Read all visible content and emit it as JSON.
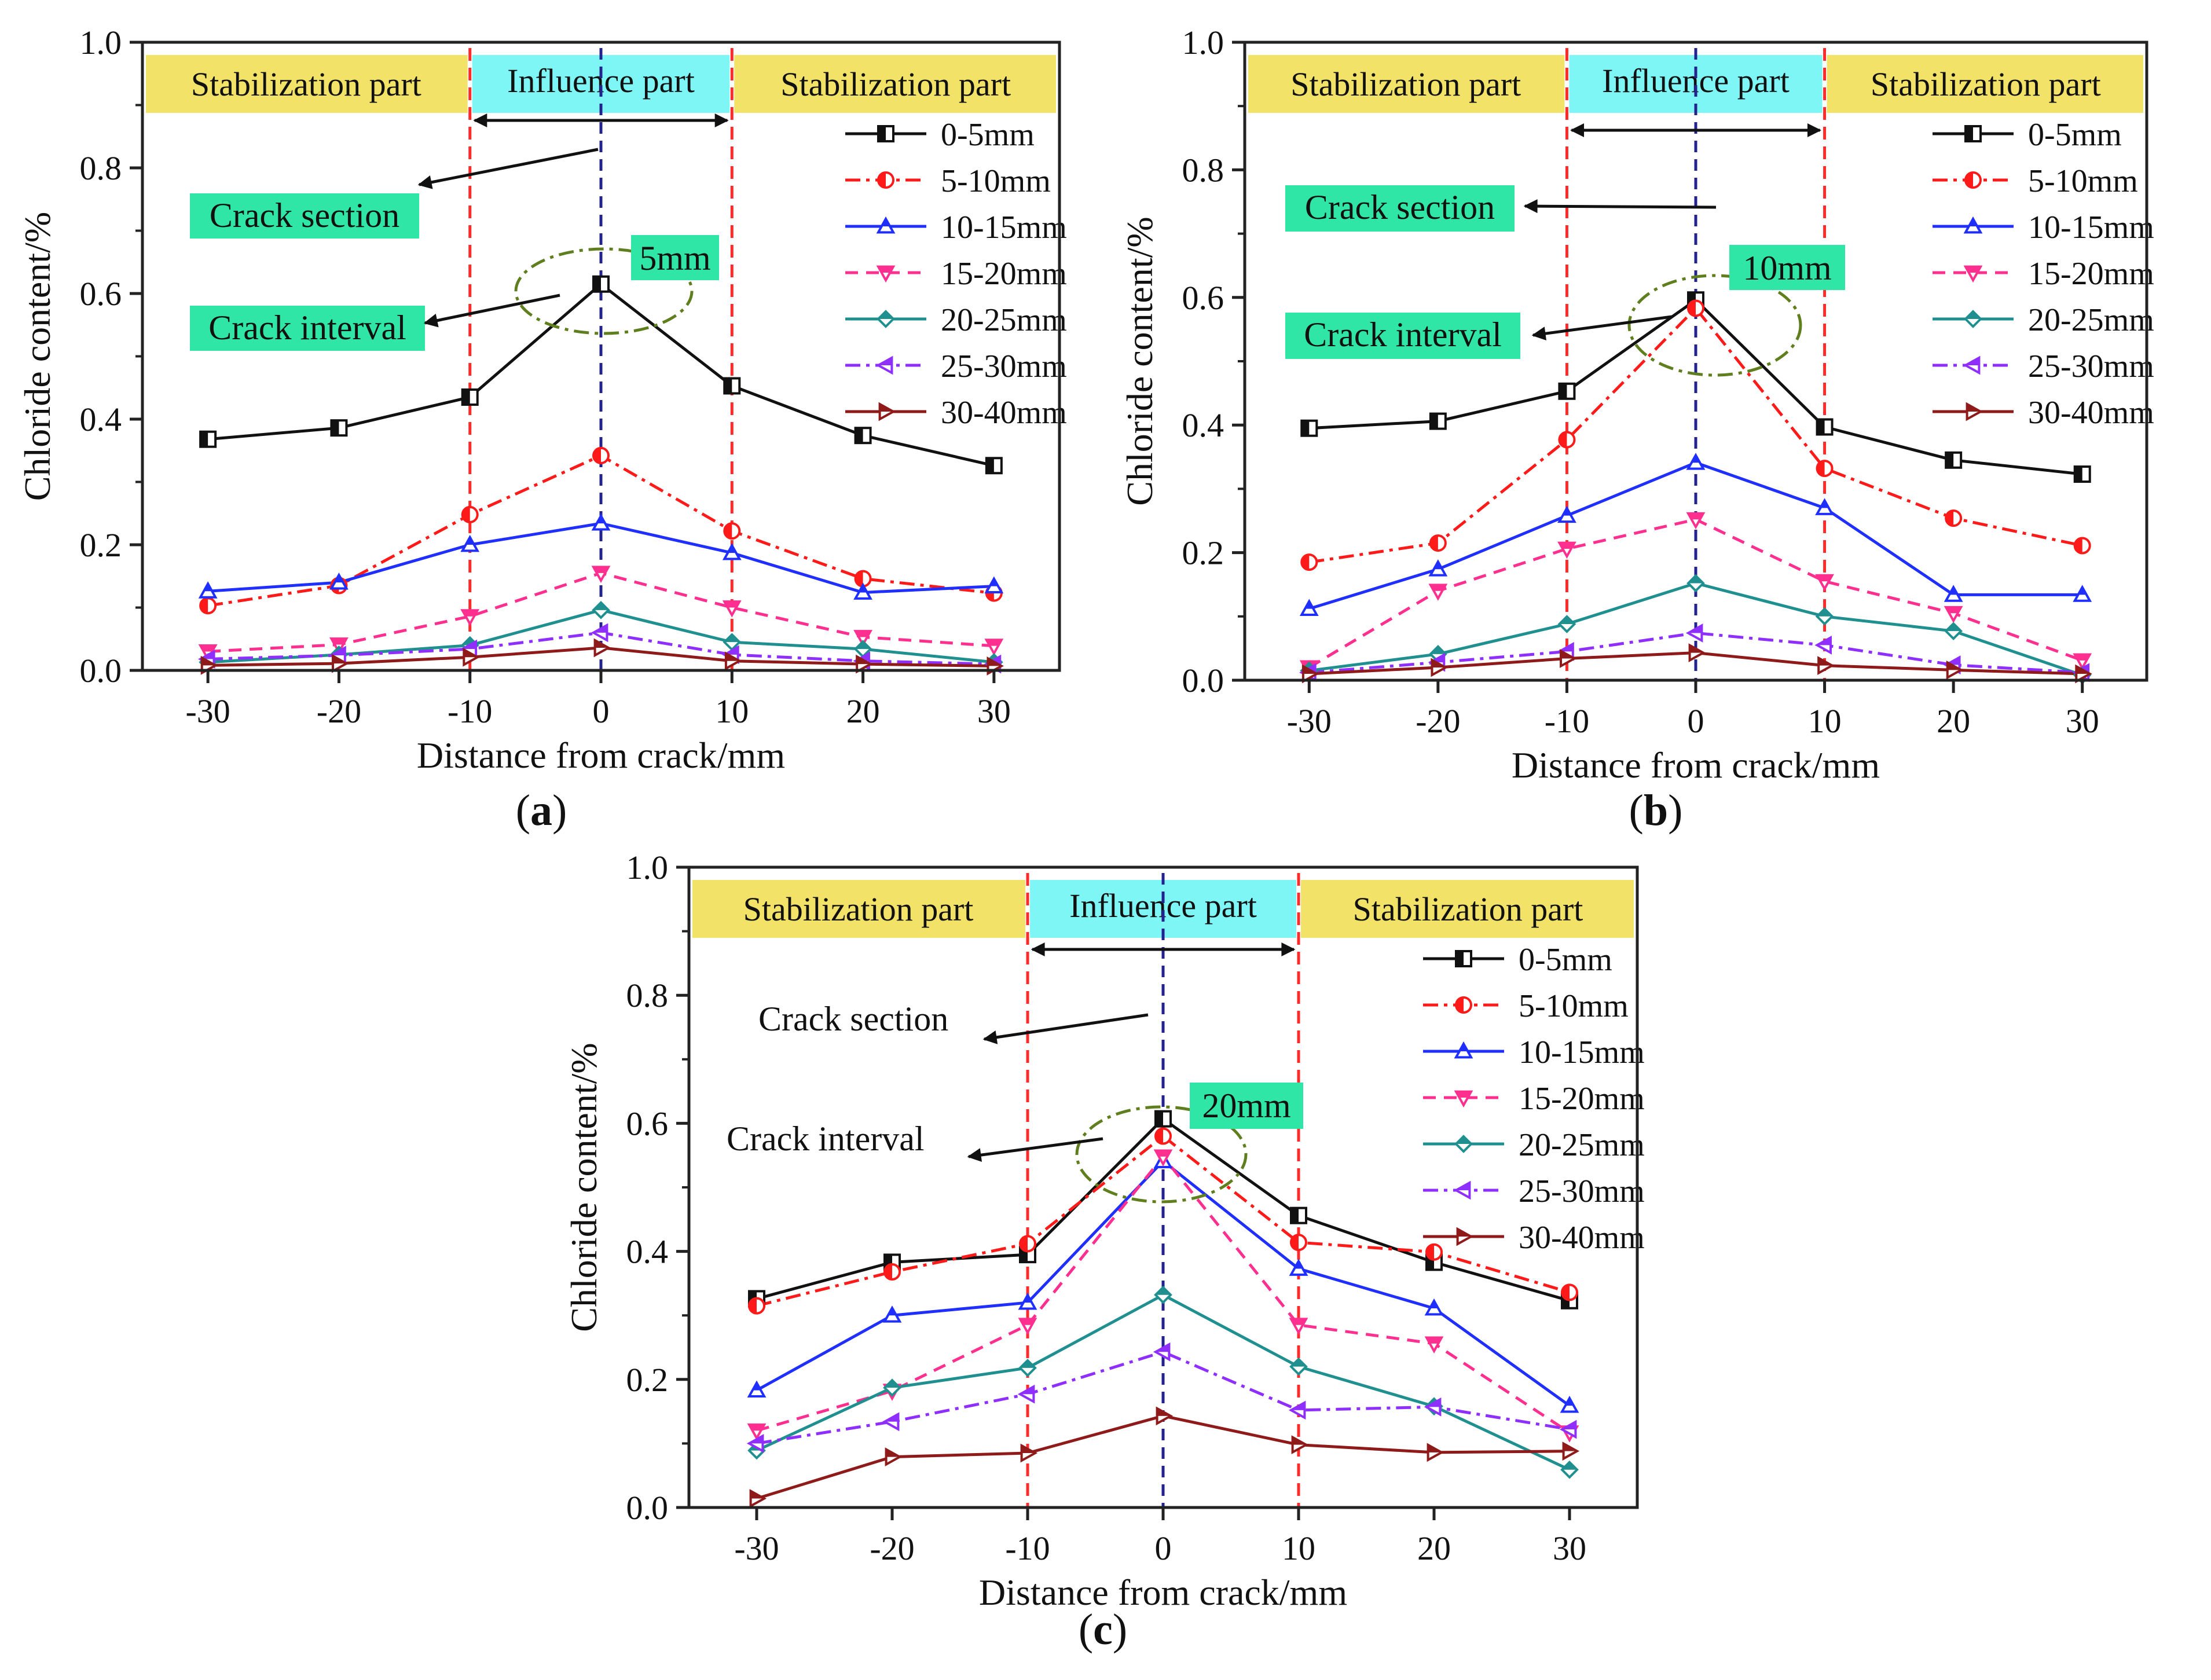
{
  "figure": {
    "panel_labels": [
      "(a)",
      "(b)",
      "(c)"
    ]
  },
  "colors": {
    "frame": "#222222",
    "part_stabilization": "#f2e267",
    "part_influence": "#7ff6f6",
    "annotation_box": "#2fe6a6",
    "boundary_line": "#ff2a2a",
    "center_line": "#23238f",
    "dash_ellipse": "#5f7f1f"
  },
  "chart_data": [
    {
      "type": "line",
      "panel": "(a)",
      "xlabel": "Distance from crack/mm",
      "ylabel": "Chloride content/%",
      "xlim": [
        -35,
        35
      ],
      "ylim": [
        0.0,
        1.0
      ],
      "xticks": [
        -30,
        -20,
        -10,
        0,
        10,
        20,
        30
      ],
      "xtick_labels": [
        "-30",
        "-20",
        "-10",
        "0",
        "10",
        "20",
        "30"
      ],
      "yticks": [
        0.0,
        0.2,
        0.4,
        0.6,
        0.8,
        1.0
      ],
      "ytick_labels": [
        "0.0",
        "0.2",
        "0.4",
        "0.6",
        "0.8",
        "1.0"
      ],
      "x": [
        -30,
        -20,
        -10,
        0,
        10,
        20,
        30
      ],
      "regions": [
        "Stabilization part",
        "Influence part",
        "Stabilization part"
      ],
      "crack_width_label": "5mm",
      "crack_section_label": "Crack section",
      "crack_interval_label": "Crack interval",
      "series": [
        {
          "name": "0-5mm",
          "values": [
            0.368,
            0.386,
            0.435,
            0.615,
            0.453,
            0.374,
            0.326
          ],
          "color": "#111111",
          "dash": "solid",
          "marker": "square"
        },
        {
          "name": "5-10mm",
          "values": [
            0.103,
            0.135,
            0.248,
            0.342,
            0.222,
            0.146,
            0.123
          ],
          "color": "#ff1a1a",
          "dash": "dashdot",
          "marker": "circle"
        },
        {
          "name": "10-15mm",
          "values": [
            0.126,
            0.14,
            0.2,
            0.234,
            0.187,
            0.124,
            0.134
          ],
          "color": "#1f2fff",
          "dash": "solid",
          "marker": "triangle-up"
        },
        {
          "name": "15-20mm",
          "values": [
            0.03,
            0.041,
            0.086,
            0.155,
            0.1,
            0.053,
            0.039
          ],
          "color": "#ff2f8f",
          "dash": "dash",
          "marker": "triangle-down"
        },
        {
          "name": "20-25mm",
          "values": [
            0.013,
            0.025,
            0.04,
            0.096,
            0.045,
            0.034,
            0.013
          ],
          "color": "#1f8f8f",
          "dash": "solid",
          "marker": "diamond"
        },
        {
          "name": "25-30mm",
          "values": [
            0.018,
            0.024,
            0.034,
            0.06,
            0.025,
            0.015,
            0.01
          ],
          "color": "#8f2fff",
          "dash": "dashdot",
          "marker": "triangle-left"
        },
        {
          "name": "30-40mm",
          "values": [
            0.008,
            0.011,
            0.021,
            0.036,
            0.015,
            0.01,
            0.007
          ],
          "color": "#8f1a1a",
          "dash": "solid",
          "marker": "triangle-right"
        }
      ]
    },
    {
      "type": "line",
      "panel": "(b)",
      "xlabel": "Distance from crack/mm",
      "ylabel": "Chloride content/%",
      "xlim": [
        -35,
        35
      ],
      "ylim": [
        0.0,
        1.0
      ],
      "xticks": [
        -30,
        -20,
        -10,
        0,
        10,
        20,
        30
      ],
      "xtick_labels": [
        "-30",
        "-20",
        "-10",
        "0",
        "10",
        "20",
        "30"
      ],
      "yticks": [
        0.0,
        0.2,
        0.4,
        0.6,
        0.8,
        1.0
      ],
      "ytick_labels": [
        "0.0",
        "0.2",
        "0.4",
        "0.6",
        "0.8",
        "1.0"
      ],
      "x": [
        -30,
        -20,
        -10,
        0,
        10,
        20,
        30
      ],
      "regions": [
        "Stabilization part",
        "Influence part",
        "Stabilization part"
      ],
      "crack_width_label": "10mm",
      "crack_section_label": "Crack section",
      "crack_interval_label": "Crack interval",
      "series": [
        {
          "name": "0-5mm",
          "values": [
            0.395,
            0.406,
            0.453,
            0.596,
            0.397,
            0.345,
            0.323
          ],
          "color": "#111111",
          "dash": "solid",
          "marker": "square"
        },
        {
          "name": "5-10mm",
          "values": [
            0.185,
            0.215,
            0.377,
            0.583,
            0.332,
            0.254,
            0.211
          ],
          "color": "#ff1a1a",
          "dash": "dashdot",
          "marker": "circle"
        },
        {
          "name": "10-15mm",
          "values": [
            0.112,
            0.174,
            0.258,
            0.341,
            0.27,
            0.134,
            0.134
          ],
          "color": "#1f2fff",
          "dash": "solid",
          "marker": "triangle-up"
        },
        {
          "name": "15-20mm",
          "values": [
            0.02,
            0.14,
            0.206,
            0.252,
            0.155,
            0.105,
            0.031
          ],
          "color": "#ff2f8f",
          "dash": "dash",
          "marker": "triangle-down"
        },
        {
          "name": "20-25mm",
          "values": [
            0.015,
            0.041,
            0.088,
            0.152,
            0.1,
            0.077,
            0.008
          ],
          "color": "#1f8f8f",
          "dash": "solid",
          "marker": "diamond"
        },
        {
          "name": "25-30mm",
          "values": [
            0.012,
            0.028,
            0.045,
            0.074,
            0.055,
            0.024,
            0.012
          ],
          "color": "#8f2fff",
          "dash": "dashdot",
          "marker": "triangle-left"
        },
        {
          "name": "30-40mm",
          "values": [
            0.01,
            0.02,
            0.034,
            0.043,
            0.023,
            0.016,
            0.01
          ],
          "color": "#8f1a1a",
          "dash": "solid",
          "marker": "triangle-right"
        }
      ]
    },
    {
      "type": "line",
      "panel": "(c)",
      "xlabel": "Distance from crack/mm",
      "ylabel": "Chloride content/%",
      "xlim": [
        -35,
        35
      ],
      "ylim": [
        0.0,
        1.0
      ],
      "xticks": [
        -30,
        -20,
        -10,
        0,
        10,
        20,
        30
      ],
      "xtick_labels": [
        "-30",
        "-20",
        "-10",
        "0",
        "10",
        "20",
        "30"
      ],
      "yticks": [
        0.0,
        0.2,
        0.4,
        0.6,
        0.8,
        1.0
      ],
      "ytick_labels": [
        "0.0",
        "0.2",
        "0.4",
        "0.6",
        "0.8",
        "1.0"
      ],
      "x": [
        -30,
        -20,
        -10,
        0,
        10,
        20,
        30
      ],
      "regions": [
        "Stabilization part",
        "Influence part",
        "Stabilization part"
      ],
      "crack_width_label": "20mm",
      "crack_section_label": "Crack section",
      "crack_interval_label": "Crack interval",
      "series": [
        {
          "name": "0-5mm",
          "values": [
            0.326,
            0.383,
            0.395,
            0.607,
            0.456,
            0.383,
            0.323
          ],
          "color": "#111111",
          "dash": "solid",
          "marker": "square"
        },
        {
          "name": "5-10mm",
          "values": [
            0.315,
            0.368,
            0.412,
            0.58,
            0.414,
            0.399,
            0.336
          ],
          "color": "#ff1a1a",
          "dash": "dashdot",
          "marker": "circle"
        },
        {
          "name": "10-15mm",
          "values": [
            0.183,
            0.3,
            0.32,
            0.541,
            0.373,
            0.311,
            0.159
          ],
          "color": "#1f2fff",
          "dash": "solid",
          "marker": "triangle-up"
        },
        {
          "name": "15-20mm",
          "values": [
            0.12,
            0.182,
            0.285,
            0.548,
            0.285,
            0.256,
            0.117
          ],
          "color": "#ff2f8f",
          "dash": "dash",
          "marker": "triangle-down"
        },
        {
          "name": "20-25mm",
          "values": [
            0.089,
            0.187,
            0.218,
            0.332,
            0.22,
            0.158,
            0.059
          ],
          "color": "#1f8f8f",
          "dash": "solid",
          "marker": "diamond"
        },
        {
          "name": "25-30mm",
          "values": [
            0.1,
            0.134,
            0.177,
            0.243,
            0.152,
            0.157,
            0.122
          ],
          "color": "#8f2fff",
          "dash": "dashdot",
          "marker": "triangle-left"
        },
        {
          "name": "30-40mm",
          "values": [
            0.014,
            0.079,
            0.085,
            0.143,
            0.098,
            0.086,
            0.088
          ],
          "color": "#8f1a1a",
          "dash": "solid",
          "marker": "triangle-right"
        }
      ]
    }
  ]
}
